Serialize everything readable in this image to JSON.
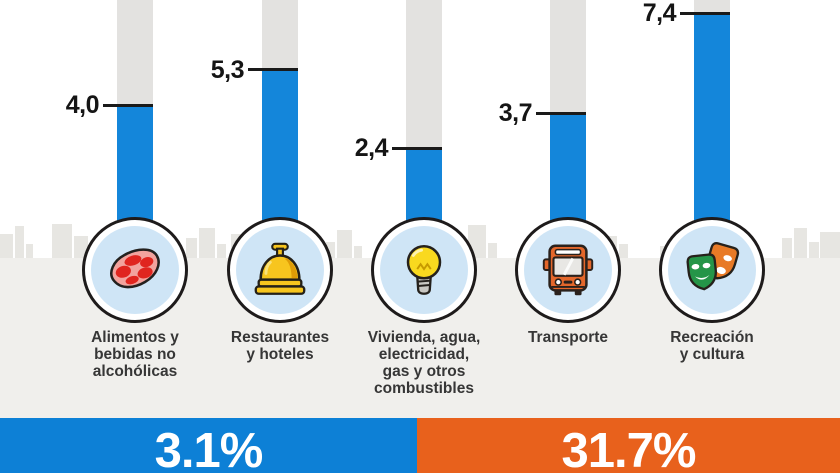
{
  "chart_data": {
    "type": "bar",
    "title": "",
    "categories": [
      "Alimentos y\nbebidas no\nalcohólicas",
      "Restaurantes\ny hoteles",
      "Vivienda, agua,\nelectricidad,\ngas y otros\ncombustibles",
      "Transporte",
      "Recreación\ny cultura"
    ],
    "values": [
      4.0,
      5.3,
      2.4,
      3.7,
      7.4
    ],
    "value_labels": [
      "4,0",
      "5,3",
      "2,4",
      "3,7",
      "7,4"
    ],
    "icons": [
      "meat-icon",
      "service-bell-icon",
      "light-bulb-icon",
      "bus-icon",
      "theater-masks-icon"
    ],
    "ylim": [
      0,
      8
    ],
    "grid": false,
    "legend": false,
    "colors": {
      "bar": "#1486da",
      "track": "#e3e2e0",
      "circle_fill": "#cfe5f6",
      "circle_border": "#1e1b1b",
      "value_text": "#151515",
      "category_text": "#363636"
    }
  },
  "footer": {
    "left": {
      "value": "3.1%",
      "color": "#0d80d6"
    },
    "right": {
      "value": "31.7%",
      "color": "#e8611c"
    }
  },
  "background": {
    "decoration": "city-skyline-silhouette",
    "ground_color": "#f0efec"
  }
}
